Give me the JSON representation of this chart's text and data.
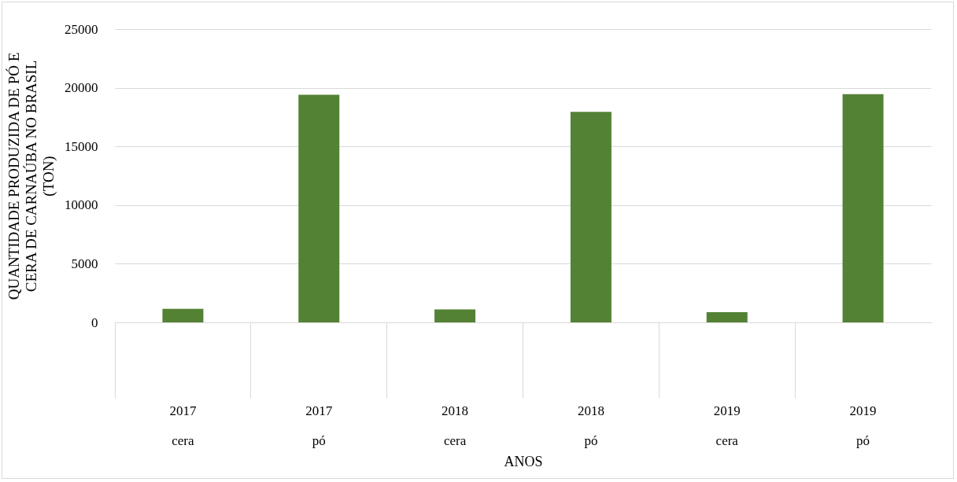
{
  "chart_data": {
    "type": "bar",
    "xlabel": "ANOS",
    "ylabel": "QUANTIDADE PRODUZIDA DE PÓ E CERA DE CARNAÚBA NO BRASIL (TON)",
    "categories": [
      "2017\ncera",
      "2017\npó",
      "2018\ncera",
      "2018\npó",
      "2019\ncera",
      "2019\npó"
    ],
    "values": [
      1150,
      19400,
      1100,
      17950,
      870,
      19450
    ],
    "color": "#548235",
    "ylim": [
      0,
      25000
    ],
    "yticks": [
      0,
      5000,
      10000,
      15000,
      20000,
      25000
    ],
    "grid": "y"
  }
}
